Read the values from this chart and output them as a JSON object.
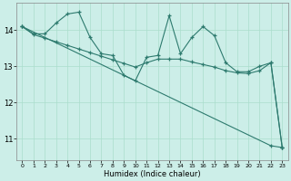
{
  "xlabel": "Humidex (Indice chaleur)",
  "bg_color": "#cceee8",
  "grid_color": "#aaddcc",
  "line_color": "#2d7a6e",
  "xlim": [
    -0.5,
    23.5
  ],
  "ylim": [
    10.4,
    14.75
  ],
  "yticks": [
    11,
    12,
    13,
    14
  ],
  "xticks": [
    0,
    1,
    2,
    3,
    4,
    5,
    6,
    7,
    8,
    9,
    10,
    11,
    12,
    13,
    14,
    15,
    16,
    17,
    18,
    19,
    20,
    21,
    22,
    23
  ],
  "series1_x": [
    0,
    1,
    2,
    3,
    4,
    5,
    6,
    7,
    8,
    9,
    10,
    11,
    12,
    13,
    14,
    15,
    16,
    17,
    18,
    19,
    20,
    21,
    22,
    23
  ],
  "series1_y": [
    14.1,
    13.9,
    13.9,
    14.2,
    14.45,
    14.5,
    13.8,
    13.35,
    13.3,
    12.75,
    12.6,
    13.25,
    13.3,
    14.4,
    13.35,
    13.8,
    14.1,
    13.85,
    13.1,
    12.85,
    12.85,
    13.0,
    13.1,
    10.75
  ],
  "series2_x": [
    0,
    22,
    23
  ],
  "series2_y": [
    14.1,
    10.8,
    10.75
  ],
  "series3_x": [
    0,
    1,
    2,
    3,
    4,
    5,
    6,
    7,
    8,
    9,
    10,
    11,
    12,
    13,
    14,
    15,
    16,
    17,
    18,
    19,
    20,
    21,
    22,
    23
  ],
  "series3_y": [
    14.1,
    13.88,
    13.78,
    13.68,
    13.58,
    13.48,
    13.38,
    13.28,
    13.18,
    13.08,
    12.98,
    13.1,
    13.2,
    13.2,
    13.2,
    13.12,
    13.05,
    12.98,
    12.88,
    12.82,
    12.8,
    12.88,
    13.1,
    10.75
  ]
}
